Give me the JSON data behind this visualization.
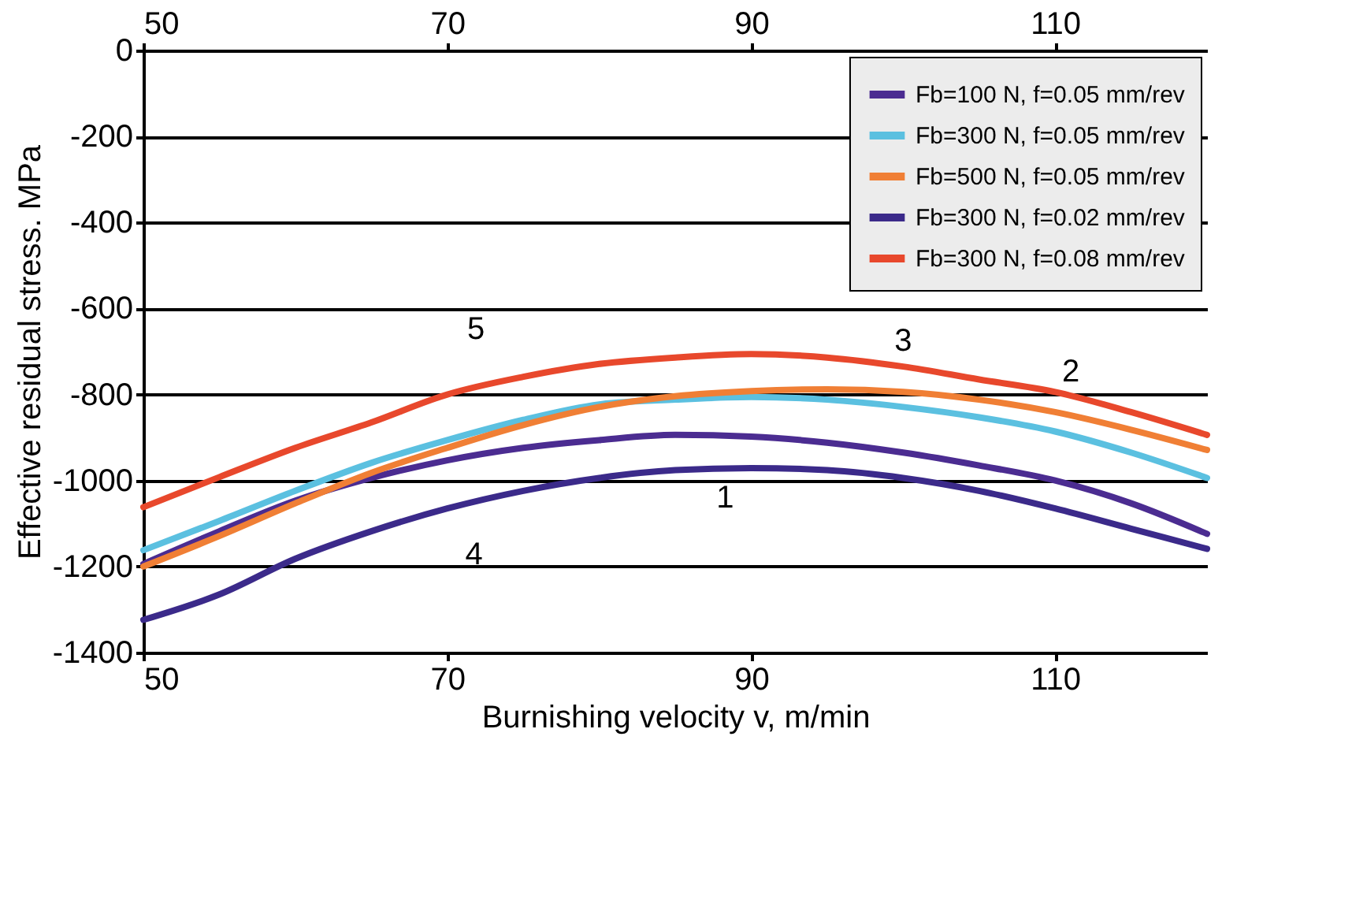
{
  "chart_data": {
    "type": "line",
    "xlabel": "Burnishing velocity v, m/min",
    "ylabel": "Effective residual stress. MPa",
    "x": [
      50,
      55,
      60,
      65,
      70,
      75,
      80,
      85,
      90,
      95,
      100,
      105,
      110,
      115,
      120
    ],
    "series": [
      {
        "name": "Fb=100 N, f=0.05 mm/rev",
        "color": "#4b2c91",
        "values": [
          -1194,
          -1118,
          -1047,
          -994,
          -953,
          -924,
          -906,
          -894,
          -898,
          -912,
          -935,
          -965,
          -1000,
          -1053,
          -1124
        ]
      },
      {
        "name": "Fb=300 N, f=0.05 mm/rev",
        "color": "#5bc0e0",
        "values": [
          -1162,
          -1094,
          -1024,
          -959,
          -906,
          -859,
          -823,
          -812,
          -806,
          -812,
          -829,
          -853,
          -886,
          -935,
          -994
        ]
      },
      {
        "name": "Fb=500 N, f=0.05 mm/rev",
        "color": "#f07f35",
        "values": [
          -1200,
          -1129,
          -1053,
          -982,
          -924,
          -871,
          -829,
          -804,
          -792,
          -788,
          -794,
          -812,
          -841,
          -882,
          -929
        ]
      },
      {
        "name": "Fb=300 N, f=0.02 mm/rev",
        "color": "#3b2a8a",
        "values": [
          -1324,
          -1265,
          -1182,
          -1118,
          -1065,
          -1024,
          -994,
          -976,
          -971,
          -976,
          -994,
          -1024,
          -1065,
          -1112,
          -1159
        ]
      },
      {
        "name": "Fb=300 N, f=0.08 mm/rev",
        "color": "#e8482c",
        "values": [
          -1062,
          -992,
          -924,
          -865,
          -800,
          -759,
          -729,
          -714,
          -706,
          -714,
          -735,
          -765,
          -794,
          -841,
          -894
        ]
      }
    ],
    "annotations": [
      {
        "text": "1",
        "x": 86,
        "y": -895
      },
      {
        "text": "2",
        "x": 110,
        "y": -886
      },
      {
        "text": "3",
        "x": 100,
        "y": -794
      },
      {
        "text": "4",
        "x": 73,
        "y": -1040
      },
      {
        "text": "5",
        "x": 75,
        "y": -759
      }
    ],
    "xlim": [
      50,
      120
    ],
    "xticks": [
      50,
      70,
      90,
      110
    ],
    "x2lim": [
      50,
      120
    ],
    "x2ticks": [
      50,
      70,
      90,
      110
    ],
    "ylim": [
      -1400,
      0
    ],
    "yticks": [
      -1400,
      -1200,
      -1000,
      -800,
      -600,
      -400,
      -200,
      0
    ],
    "grid": "y",
    "legend": "top right",
    "marker": "none",
    "line_style": "solid"
  }
}
